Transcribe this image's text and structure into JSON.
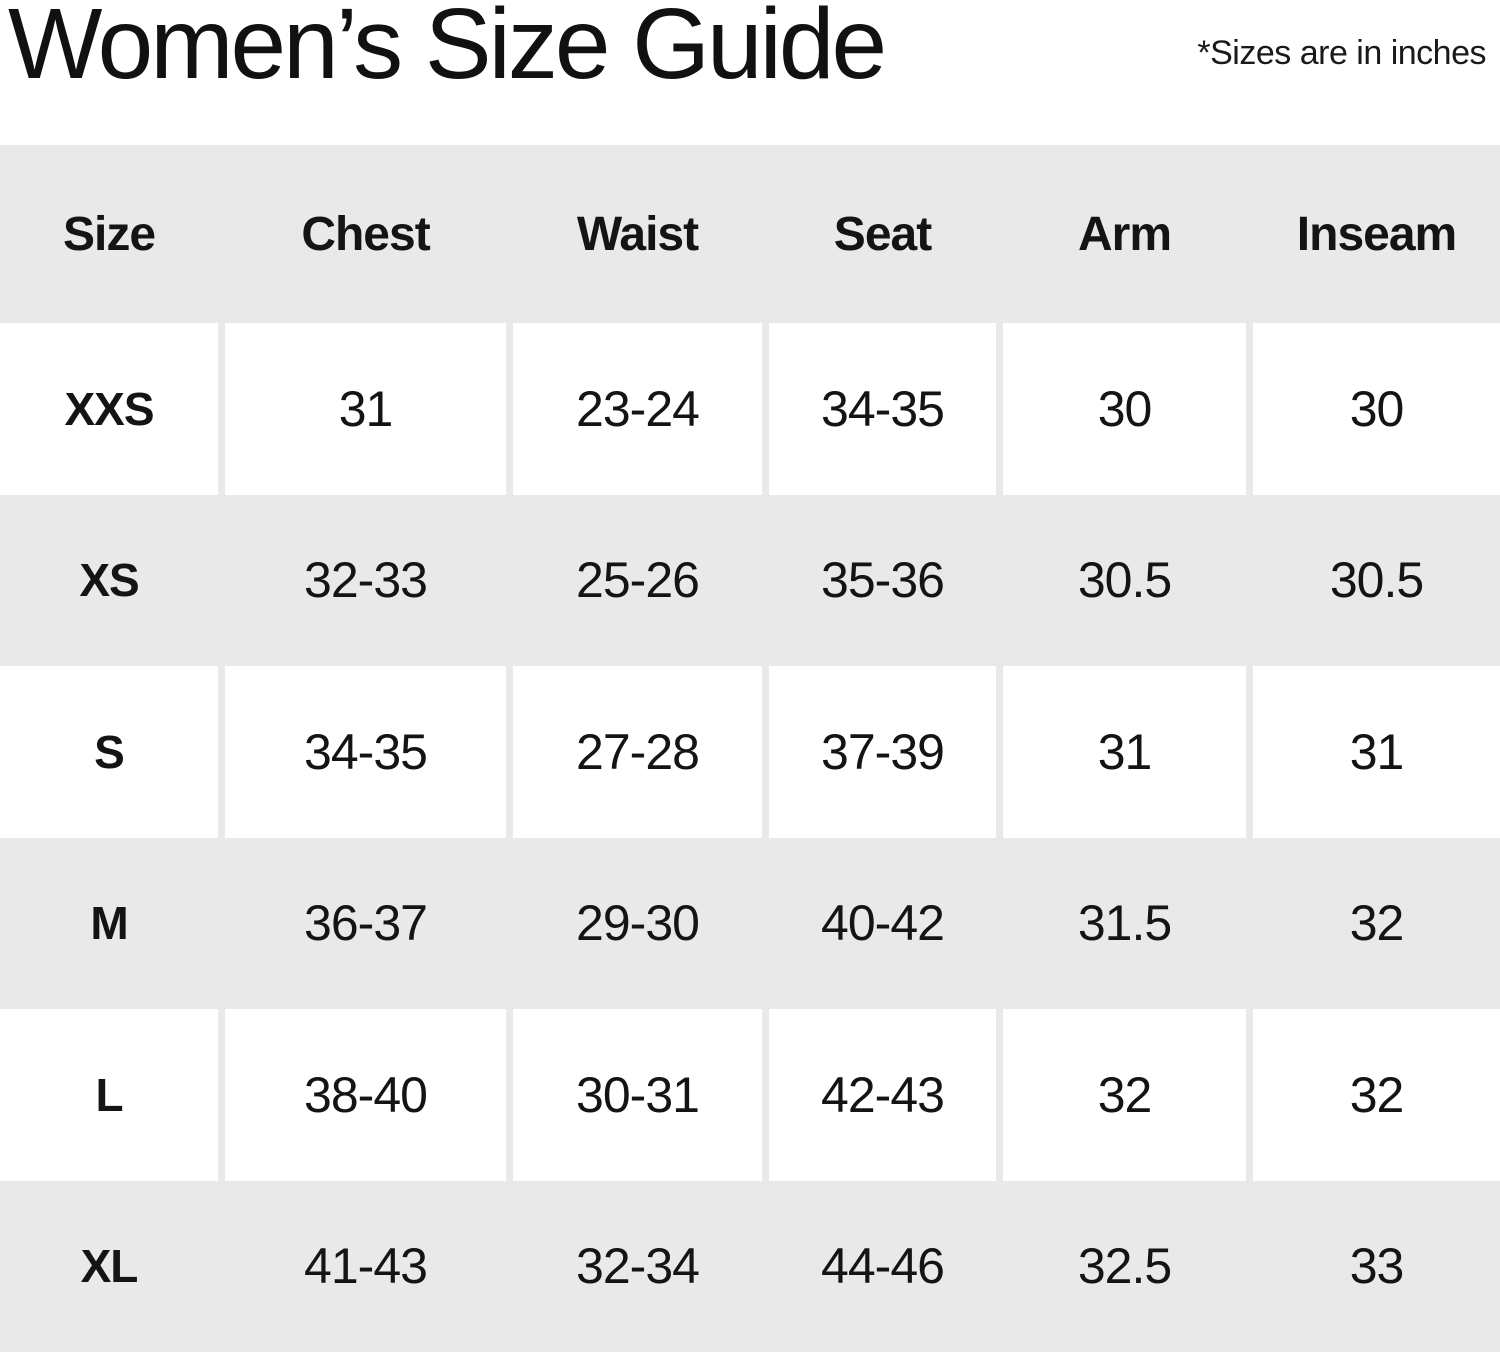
{
  "title": "Women’s Size Guide",
  "note": "*Sizes are in inches",
  "colors": {
    "background": "#ffffff",
    "row_shaded": "#e9e9e9",
    "text": "#141414"
  },
  "table": {
    "headers": [
      "Size",
      "Chest",
      "Waist",
      "Seat",
      "Arm",
      "Inseam"
    ],
    "rows": [
      {
        "size": "XXS",
        "values": [
          "31",
          "23-24",
          "34-35",
          "30",
          "30"
        ]
      },
      {
        "size": "XS",
        "values": [
          "32-33",
          "25-26",
          "35-36",
          "30.5",
          "30.5"
        ]
      },
      {
        "size": "S",
        "values": [
          "34-35",
          "27-28",
          "37-39",
          "31",
          "31"
        ]
      },
      {
        "size": "M",
        "values": [
          "36-37",
          "29-30",
          "40-42",
          "31.5",
          "32"
        ]
      },
      {
        "size": "L",
        "values": [
          "38-40",
          "30-31",
          "42-43",
          "32",
          "32"
        ]
      },
      {
        "size": "XL",
        "values": [
          "41-43",
          "32-34",
          "44-46",
          "32.5",
          "33"
        ]
      }
    ]
  }
}
